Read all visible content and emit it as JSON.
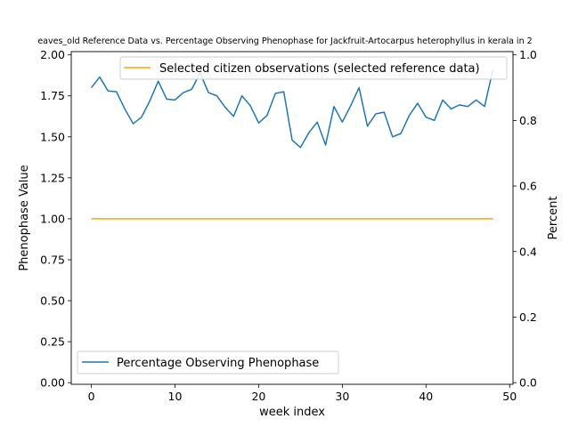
{
  "chart_data": {
    "type": "line",
    "title": "eaves_old Reference Data vs. Percentage Observing Phenophase for Jackfruit-Artocarpus heterophyllus in kerala in 2",
    "xlabel": "week index",
    "ylabel": "Phenophase Value",
    "y2label": "Percent",
    "xlim": [
      -2.4,
      50.4
    ],
    "ylim": [
      -0.01,
      2.02
    ],
    "y2lim": [
      -0.005,
      1.01
    ],
    "xticks": [
      "0",
      "10",
      "20",
      "30",
      "40",
      "50"
    ],
    "yticks": [
      "0.00",
      "0.25",
      "0.50",
      "0.75",
      "1.00",
      "1.25",
      "1.50",
      "1.75",
      "2.00"
    ],
    "y2ticks": [
      "0.0",
      "0.2",
      "0.4",
      "0.6",
      "0.8",
      "1.0"
    ],
    "grid": false,
    "series": [
      {
        "name": "Percentage Observing Phenophase",
        "axis": "left",
        "color": "#1f77b4",
        "legend": "lower-left",
        "x": [
          0,
          1,
          2,
          3,
          4,
          5,
          6,
          7,
          8,
          9,
          10,
          11,
          12,
          13,
          14,
          15,
          16,
          17,
          18,
          19,
          20,
          21,
          22,
          23,
          24,
          25,
          26,
          27,
          28,
          29,
          30,
          31,
          32,
          33,
          34,
          35,
          36,
          37,
          38,
          39,
          40,
          41,
          42,
          43,
          44,
          45,
          46,
          47,
          48
        ],
        "values": [
          1.8,
          1.865,
          1.78,
          1.775,
          1.67,
          1.58,
          1.62,
          1.72,
          1.84,
          1.73,
          1.725,
          1.77,
          1.79,
          1.89,
          1.77,
          1.75,
          1.68,
          1.625,
          1.75,
          1.69,
          1.585,
          1.63,
          1.765,
          1.775,
          1.48,
          1.435,
          1.525,
          1.59,
          1.45,
          1.685,
          1.59,
          1.69,
          1.8,
          1.565,
          1.64,
          1.65,
          1.5,
          1.52,
          1.63,
          1.705,
          1.62,
          1.6,
          1.725,
          1.67,
          1.695,
          1.685,
          1.725,
          1.685,
          1.91
        ]
      },
      {
        "name": "Selected citizen observations (selected reference data)",
        "axis": "right",
        "color": "#ffa500",
        "legend": "upper-right",
        "x": [
          0,
          48
        ],
        "values": [
          0.5,
          0.5
        ]
      }
    ]
  }
}
